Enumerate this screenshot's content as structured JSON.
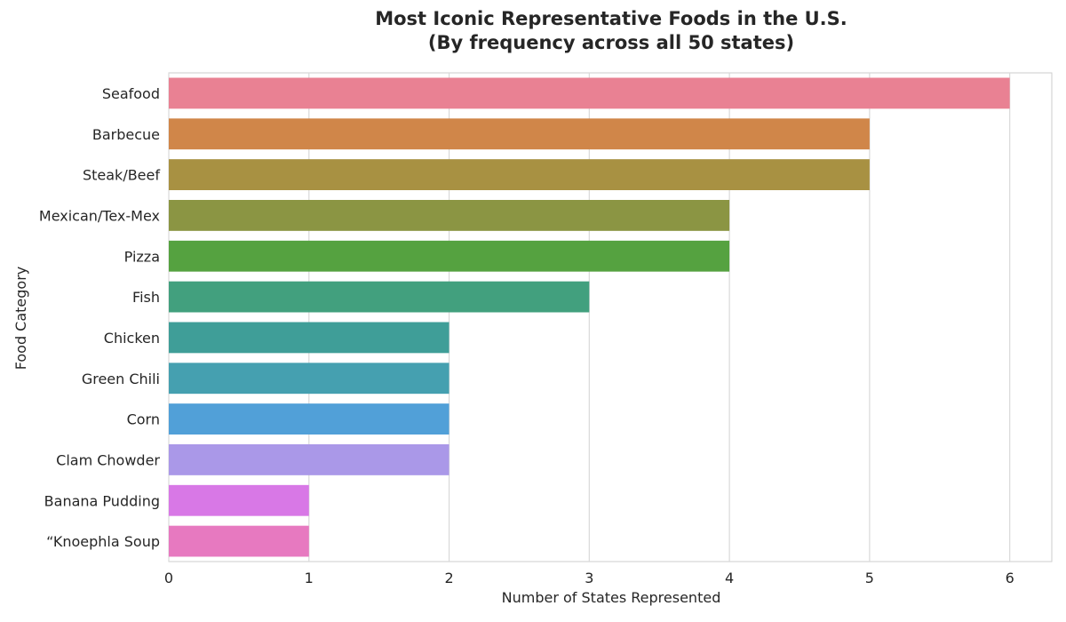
{
  "chart_data": {
    "type": "bar",
    "orientation": "horizontal",
    "title": "Most Iconic Representative Foods in the U.S.",
    "subtitle": "(By frequency across all 50 states)",
    "xlabel": "Number of States Represented",
    "ylabel": "Food Category",
    "xlim": [
      0,
      6.3
    ],
    "x_ticks": [
      "0",
      "1",
      "2",
      "3",
      "4",
      "5",
      "6"
    ],
    "grid": true,
    "categories": [
      "Seafood",
      "Barbecue",
      "Steak/Beef",
      "Mexican/Tex-Mex",
      "Pizza",
      "Fish",
      "Chicken",
      "Green Chili",
      "Corn",
      "Clam Chowder",
      "Banana Pudding",
      "“Knoephla Soup"
    ],
    "values": [
      6,
      5,
      5,
      4,
      4,
      3,
      2,
      2,
      2,
      2,
      1,
      1
    ],
    "colors": [
      "#e98193",
      "#d08649",
      "#a89142",
      "#8b9543",
      "#55a240",
      "#42a07e",
      "#3f9e98",
      "#45a0b0",
      "#51a0d8",
      "#aa98e8",
      "#d878e6",
      "#e779c0"
    ]
  }
}
